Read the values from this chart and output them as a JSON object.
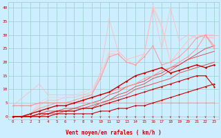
{
  "xlabel": "Vent moyen/en rafales ( km/h )",
  "bg_color": "#cceeff",
  "grid_color": "#99cccc",
  "text_color": "#cc0000",
  "xlim": [
    -0.5,
    23.5
  ],
  "ylim": [
    -1,
    42
  ],
  "xticks": [
    0,
    1,
    2,
    3,
    4,
    5,
    6,
    7,
    8,
    9,
    10,
    11,
    12,
    13,
    14,
    15,
    16,
    17,
    18,
    19,
    20,
    21,
    22,
    23
  ],
  "yticks": [
    0,
    5,
    10,
    15,
    20,
    25,
    30,
    35,
    40
  ],
  "lines": [
    {
      "x": [
        0,
        1,
        2,
        3,
        4,
        5,
        6,
        7,
        8,
        9,
        10,
        11,
        12,
        13,
        14,
        15,
        16,
        17,
        18,
        19,
        20,
        21,
        22,
        23
      ],
      "y": [
        0,
        0,
        0,
        0,
        0,
        1,
        1,
        1,
        1,
        1,
        2,
        2,
        3,
        3,
        4,
        4,
        5,
        6,
        7,
        8,
        9,
        10,
        11,
        12
      ],
      "color": "#cc0000",
      "lw": 0.8,
      "marker": "D",
      "ms": 1.5,
      "alpha": 1.0,
      "zorder": 5
    },
    {
      "x": [
        0,
        1,
        2,
        3,
        4,
        5,
        6,
        7,
        8,
        9,
        10,
        11,
        12,
        13,
        14,
        15,
        16,
        17,
        18,
        19,
        20,
        21,
        22,
        23
      ],
      "y": [
        0,
        0,
        0,
        1,
        1,
        2,
        2,
        2,
        3,
        3,
        4,
        5,
        6,
        7,
        8,
        9,
        10,
        11,
        12,
        13,
        14,
        15,
        15,
        11
      ],
      "color": "#cc0000",
      "lw": 0.8,
      "marker": "D",
      "ms": 1.5,
      "alpha": 1.0,
      "zorder": 5
    },
    {
      "x": [
        0,
        1,
        2,
        3,
        4,
        5,
        6,
        7,
        8,
        9,
        10,
        11,
        12,
        13,
        14,
        15,
        16,
        17,
        18,
        19,
        20,
        21,
        22,
        23
      ],
      "y": [
        0,
        0,
        1,
        2,
        3,
        4,
        4,
        5,
        6,
        7,
        8,
        9,
        11,
        13,
        15,
        16,
        17,
        18,
        16,
        17,
        18,
        19,
        18,
        19
      ],
      "color": "#cc0000",
      "lw": 1.0,
      "marker": "D",
      "ms": 1.8,
      "alpha": 1.0,
      "zorder": 5
    },
    {
      "x": [
        0,
        1,
        2,
        3,
        4,
        5,
        6,
        7,
        8,
        9,
        10,
        11,
        12,
        13,
        14,
        15,
        16,
        17,
        18,
        19,
        20,
        21,
        22,
        23
      ],
      "y": [
        0,
        0,
        0,
        1,
        1,
        2,
        2,
        3,
        3,
        4,
        5,
        6,
        8,
        9,
        11,
        12,
        14,
        15,
        17,
        19,
        21,
        23,
        25,
        26
      ],
      "color": "#dd4444",
      "lw": 0.7,
      "marker": null,
      "ms": 0,
      "alpha": 0.9,
      "zorder": 3
    },
    {
      "x": [
        0,
        1,
        2,
        3,
        4,
        5,
        6,
        7,
        8,
        9,
        10,
        11,
        12,
        13,
        14,
        15,
        16,
        17,
        18,
        19,
        20,
        21,
        22,
        23
      ],
      "y": [
        0,
        0,
        0,
        1,
        2,
        2,
        3,
        3,
        4,
        5,
        6,
        8,
        9,
        11,
        12,
        13,
        15,
        16,
        18,
        19,
        21,
        22,
        23,
        24
      ],
      "color": "#dd4444",
      "lw": 0.7,
      "marker": null,
      "ms": 0,
      "alpha": 0.9,
      "zorder": 3
    },
    {
      "x": [
        0,
        1,
        2,
        3,
        4,
        5,
        6,
        7,
        8,
        9,
        10,
        11,
        12,
        13,
        14,
        15,
        16,
        17,
        18,
        19,
        20,
        21,
        22,
        23
      ],
      "y": [
        0,
        0,
        0,
        0,
        1,
        1,
        2,
        2,
        3,
        3,
        5,
        6,
        7,
        8,
        10,
        11,
        12,
        13,
        14,
        16,
        17,
        18,
        19,
        20
      ],
      "color": "#dd4444",
      "lw": 0.7,
      "marker": null,
      "ms": 0,
      "alpha": 0.9,
      "zorder": 3
    },
    {
      "x": [
        0,
        1,
        2,
        3,
        4,
        5,
        6,
        7,
        8,
        9,
        10,
        11,
        12,
        13,
        14,
        15,
        16,
        17,
        18,
        19,
        20,
        21,
        22,
        23
      ],
      "y": [
        4,
        4,
        4,
        5,
        5,
        5,
        5,
        5,
        5,
        5,
        5,
        5,
        5,
        5,
        5,
        5,
        5,
        5,
        5,
        5,
        5,
        5,
        5,
        5
      ],
      "color": "#ff9999",
      "lw": 0.8,
      "marker": "D",
      "ms": 1.5,
      "alpha": 0.9,
      "zorder": 4
    },
    {
      "x": [
        0,
        1,
        2,
        3,
        4,
        5,
        6,
        7,
        8,
        9,
        10,
        11,
        12,
        13,
        14,
        15,
        16,
        17,
        18,
        19,
        20,
        21,
        22,
        23
      ],
      "y": [
        4,
        4,
        4,
        5,
        5,
        5,
        5,
        5,
        6,
        7,
        8,
        9,
        10,
        11,
        12,
        14,
        15,
        17,
        18,
        20,
        22,
        25,
        30,
        26
      ],
      "color": "#ff9999",
      "lw": 0.8,
      "marker": "D",
      "ms": 1.5,
      "alpha": 0.9,
      "zorder": 4
    },
    {
      "x": [
        0,
        1,
        2,
        3,
        4,
        5,
        6,
        7,
        8,
        9,
        10,
        11,
        12,
        13,
        14,
        15,
        16,
        17,
        18,
        19,
        20,
        21,
        22,
        23
      ],
      "y": [
        0,
        0,
        1,
        3,
        4,
        5,
        5,
        6,
        7,
        8,
        14,
        22,
        23,
        20,
        19,
        22,
        26,
        19,
        20,
        22,
        25,
        29,
        30,
        25
      ],
      "color": "#ff9999",
      "lw": 0.8,
      "marker": "D",
      "ms": 1.5,
      "alpha": 0.9,
      "zorder": 4
    },
    {
      "x": [
        0,
        1,
        2,
        3,
        4,
        5,
        6,
        7,
        8,
        9,
        10,
        11,
        12,
        13,
        14,
        15,
        16,
        17,
        18,
        19,
        20,
        21,
        22,
        23
      ],
      "y": [
        0,
        0,
        1,
        4,
        6,
        6,
        7,
        7,
        8,
        9,
        15,
        23,
        23,
        20,
        19,
        23,
        40,
        33,
        20,
        24,
        28,
        30,
        29,
        29
      ],
      "color": "#ffbbbb",
      "lw": 0.7,
      "marker": "D",
      "ms": 1.2,
      "alpha": 0.85,
      "zorder": 3
    },
    {
      "x": [
        0,
        1,
        2,
        3,
        4,
        5,
        6,
        7,
        8,
        9,
        10,
        11,
        12,
        13,
        14,
        15,
        16,
        17,
        18,
        19,
        20,
        21,
        22,
        23
      ],
      "y": [
        0,
        0,
        1,
        5,
        7,
        7,
        7,
        8,
        9,
        10,
        16,
        24,
        24,
        21,
        19,
        23,
        41,
        34,
        20,
        24,
        28,
        30,
        30,
        29
      ],
      "color": "#ffcccc",
      "lw": 0.7,
      "marker": "D",
      "ms": 1.2,
      "alpha": 0.8,
      "zorder": 3
    },
    {
      "x": [
        0,
        3,
        4,
        9,
        10,
        11,
        12,
        13,
        14,
        15,
        16,
        17,
        18,
        19,
        20,
        21,
        22,
        23
      ],
      "y": [
        4,
        12,
        8,
        8,
        16,
        36,
        24,
        21,
        22,
        23,
        40,
        25,
        40,
        28,
        30,
        29,
        30,
        30
      ],
      "color": "#ffbbbb",
      "lw": 0.7,
      "marker": "D",
      "ms": 1.2,
      "alpha": 0.8,
      "zorder": 3
    }
  ]
}
